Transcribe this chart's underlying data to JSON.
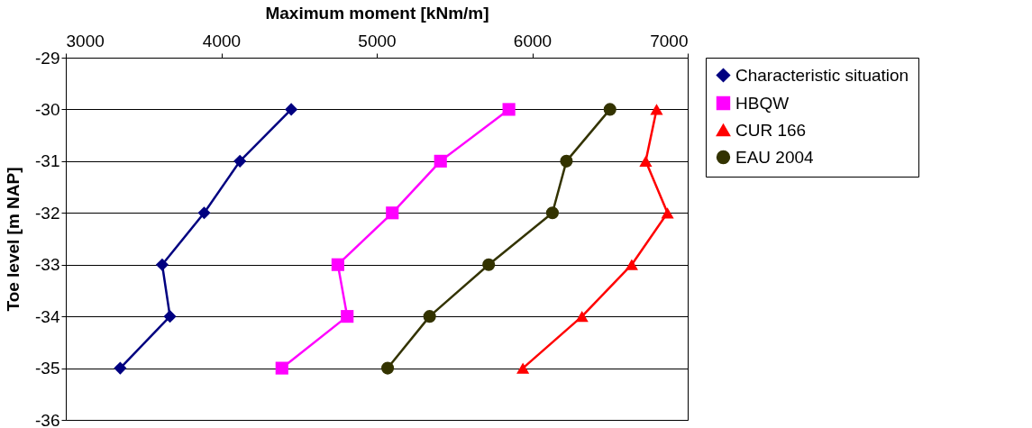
{
  "chart_data": {
    "type": "line",
    "xlabel": "Maximum moment [kNm/m]",
    "ylabel": "Toe level [m NAP]",
    "xlim": [
      3000,
      7000
    ],
    "xticks": [
      3000,
      4000,
      5000,
      6000,
      7000
    ],
    "ylim": [
      -36,
      -29
    ],
    "yticks": [
      -36,
      -35,
      -34,
      -33,
      -32,
      -31,
      -30,
      -29
    ],
    "grid": "y",
    "legend": "right",
    "line_style": "solid",
    "series": [
      {
        "name": "Characteristic situation",
        "color": "#000080",
        "marker": "diamond",
        "x": [
          4450,
          4120,
          3890,
          3620,
          3670,
          3350
        ],
        "values": [
          -30,
          -31,
          -32,
          -33,
          -34,
          -35
        ]
      },
      {
        "name": "HBQW",
        "color": "#ff00ff",
        "marker": "square",
        "x": [
          5850,
          5410,
          5100,
          4750,
          4810,
          4390
        ],
        "values": [
          -30,
          -31,
          -32,
          -33,
          -34,
          -35
        ]
      },
      {
        "name": "CUR 166",
        "color": "#ff0000",
        "marker": "triangle",
        "x": [
          6800,
          6730,
          6870,
          6640,
          6320,
          5940
        ],
        "values": [
          -30,
          -31,
          -32,
          -33,
          -34,
          -35
        ]
      },
      {
        "name": "EAU 2004",
        "color": "#333300",
        "marker": "circle",
        "x": [
          6500,
          6220,
          6130,
          5720,
          5340,
          5070
        ],
        "values": [
          -30,
          -31,
          -32,
          -33,
          -34,
          -35
        ]
      }
    ]
  }
}
